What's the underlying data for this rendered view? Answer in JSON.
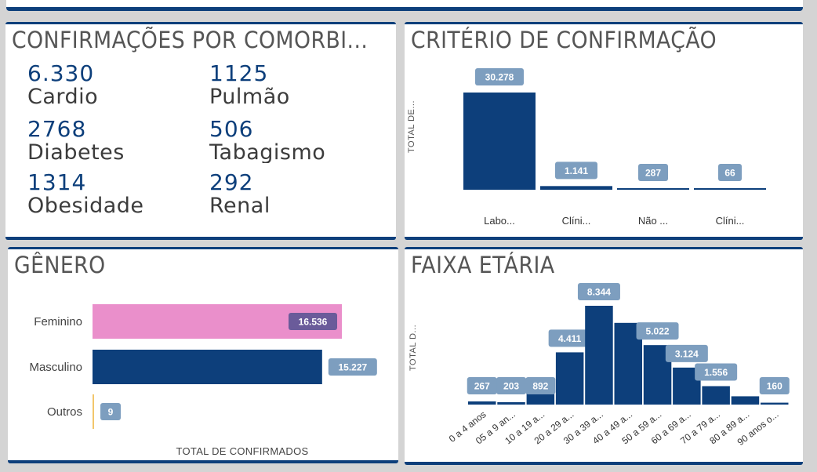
{
  "comorbidades": {
    "title": "CONFIRMAÇÕES POR COMORBI...",
    "items": [
      {
        "value": "6.330",
        "label": "Cardio"
      },
      {
        "value": "1125",
        "label": "Pulmão"
      },
      {
        "value": "2768",
        "label": "Diabetes"
      },
      {
        "value": "506",
        "label": "Tabagismo"
      },
      {
        "value": "1314",
        "label": "Obesidade"
      },
      {
        "value": "292",
        "label": "Renal"
      }
    ]
  },
  "criterio": {
    "title": "CRITÉRIO DE CONFIRMAÇÃO",
    "ylabel": "TOTAL DE...",
    "colors": {
      "bar": "#0d3f7b",
      "label_bg": "#7d9ebf"
    }
  },
  "genero": {
    "title": "GÊNERO",
    "xlabel": "TOTAL DE CONFIRMADOS",
    "colors": {
      "Feminino": "#ea8fcb",
      "Masculino": "#0d3f7b",
      "Outros": "#f2c66b",
      "label_fem": "#6a5b9a",
      "label_bg": "#7d9ebf"
    }
  },
  "faixa": {
    "title": "FAIXA ETÁRIA",
    "ylabel": "TOTAL D...",
    "colors": {
      "bar": "#0d3f7b",
      "label_bg": "#7d9ebf"
    }
  },
  "chart_data": [
    {
      "type": "bar",
      "title": "CRITÉRIO DE CONFIRMAÇÃO",
      "ylabel": "TOTAL DE...",
      "categories": [
        "Labo...",
        "Clíni...",
        "Não ...",
        "Clíni..."
      ],
      "values": [
        30278,
        1141,
        287,
        66
      ],
      "value_labels": [
        "30.278",
        "1.141",
        "287",
        "66"
      ]
    },
    {
      "type": "bar",
      "orientation": "horizontal",
      "title": "GÊNERO",
      "xlabel": "TOTAL DE CONFIRMADOS",
      "categories": [
        "Feminino",
        "Masculino",
        "Outros"
      ],
      "values": [
        16536,
        15227,
        9
      ],
      "value_labels": [
        "16.536",
        "15.227",
        "9"
      ]
    },
    {
      "type": "bar",
      "title": "FAIXA ETÁRIA",
      "ylabel": "TOTAL D...",
      "categories": [
        "0 a 4 anos",
        "05 a 9 an...",
        "10 a 19 a...",
        "20 a 29 a...",
        "30 a 39 a...",
        "40 a 49 a...",
        "50 a 59 a...",
        "60 a 69 a...",
        "70 a 79 a...",
        "80 a 89 a...",
        "90 anos o..."
      ],
      "values": [
        267,
        203,
        892,
        4411,
        8344,
        6900,
        5022,
        3124,
        1556,
        700,
        160
      ],
      "value_labels": [
        "267",
        "203",
        "892",
        "4.411",
        "8.344",
        "",
        "5.022",
        "3.124",
        "1.556",
        "",
        "160"
      ]
    }
  ]
}
